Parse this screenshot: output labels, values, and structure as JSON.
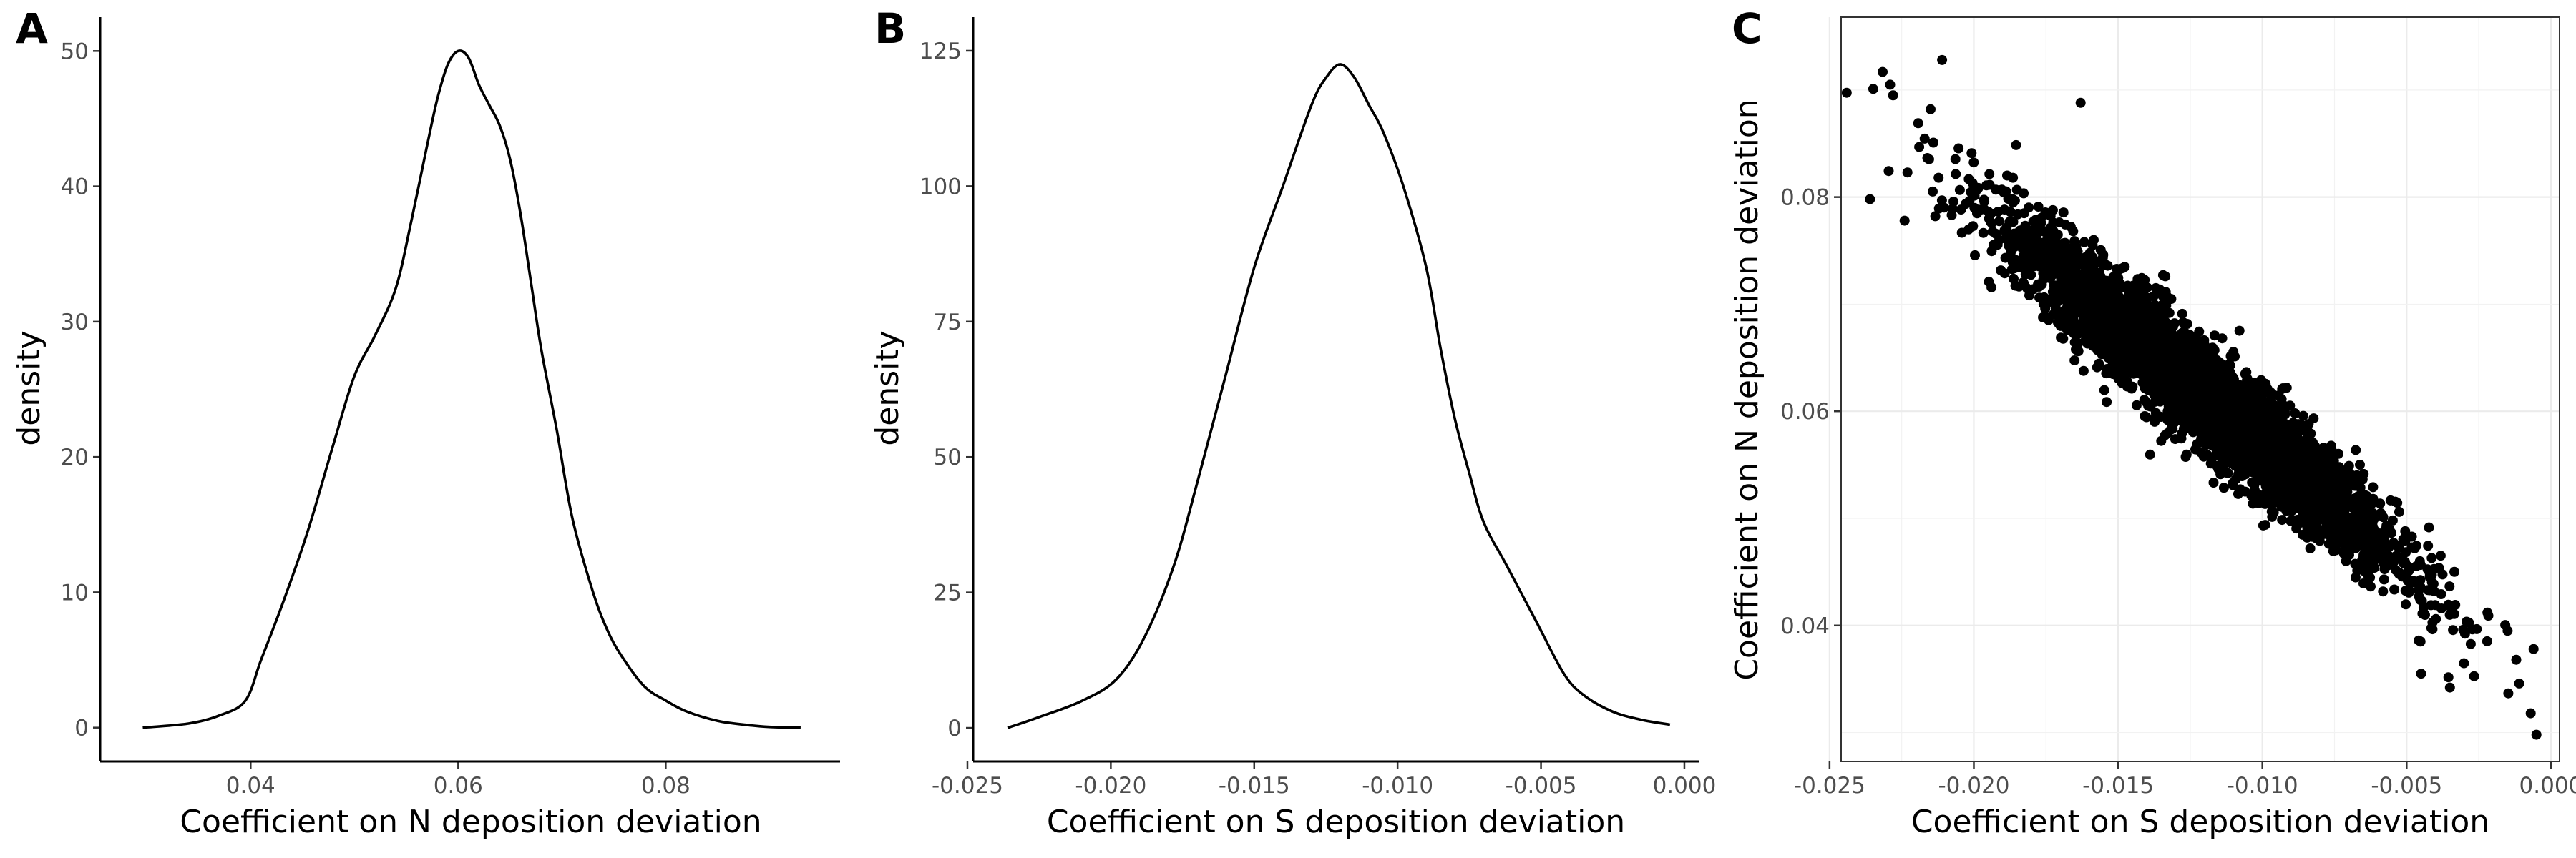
{
  "chart_data": [
    {
      "type": "line",
      "panel": "A",
      "xlabel": "Coefficient on N deposition deviation",
      "ylabel": "density",
      "xlim": [
        0.0255,
        0.0968
      ],
      "ylim": [
        -2.5,
        52.5
      ],
      "xticks": [
        0.04,
        0.06,
        0.08
      ],
      "xtick_labels": [
        "0.04",
        "0.06",
        "0.08"
      ],
      "yticks": [
        0,
        10,
        20,
        30,
        40,
        50
      ],
      "ytick_labels": [
        "0",
        "10",
        "20",
        "30",
        "40",
        "50"
      ],
      "grid": false,
      "x": [
        0.0296,
        0.034,
        0.037,
        0.0395,
        0.041,
        0.043,
        0.0455,
        0.048,
        0.05,
        0.052,
        0.054,
        0.0555,
        0.057,
        0.058,
        0.059,
        0.06,
        0.061,
        0.062,
        0.063,
        0.064,
        0.065,
        0.066,
        0.067,
        0.068,
        0.0695,
        0.071,
        0.073,
        0.0745,
        0.076,
        0.078,
        0.08,
        0.082,
        0.085,
        0.0878,
        0.09,
        0.093
      ],
      "y": [
        0,
        0.3,
        0.9,
        2.0,
        5.0,
        9.0,
        14.5,
        21.0,
        26.0,
        29.0,
        32.5,
        37.5,
        43.0,
        46.5,
        49.0,
        50.0,
        49.5,
        47.5,
        46.0,
        44.5,
        42.0,
        38.0,
        33.0,
        28.0,
        22.0,
        15.5,
        10.0,
        7.0,
        5.0,
        3.0,
        2.0,
        1.2,
        0.5,
        0.2,
        0.05,
        0
      ]
    },
    {
      "type": "line",
      "panel": "B",
      "xlabel": "Coefficient on S deposition deviation",
      "ylabel": "density",
      "xlim": [
        -0.0248,
        0.0005
      ],
      "ylim": [
        -6.2,
        131.2
      ],
      "xticks": [
        -0.025,
        -0.02,
        -0.015,
        -0.01,
        -0.005,
        0.0
      ],
      "xtick_labels": [
        "-0.025",
        "-0.020",
        "-0.015",
        "-0.010",
        "-0.005",
        "0.000"
      ],
      "yticks": [
        0,
        25,
        50,
        75,
        100,
        125
      ],
      "ytick_labels": [
        "0",
        "25",
        "50",
        "75",
        "100",
        "125"
      ],
      "grid": false,
      "x": [
        -0.0236,
        -0.0225,
        -0.021,
        -0.0198,
        -0.0188,
        -0.0178,
        -0.017,
        -0.016,
        -0.015,
        -0.014,
        -0.013,
        -0.0125,
        -0.012,
        -0.0115,
        -0.011,
        -0.0105,
        -0.0098,
        -0.009,
        -0.0085,
        -0.008,
        -0.0075,
        -0.007,
        -0.0062,
        -0.0052,
        -0.0042,
        -0.0035,
        -0.0025,
        -0.0015,
        -0.0005
      ],
      "y": [
        0,
        2.0,
        5.0,
        9.0,
        17.0,
        30.0,
        45.0,
        65.0,
        85.0,
        100.0,
        115.0,
        120.0,
        122.5,
        120.0,
        115.0,
        110.0,
        100.0,
        85.0,
        70.0,
        57.0,
        47.0,
        38.0,
        30.0,
        20.0,
        10.0,
        6.0,
        3.0,
        1.5,
        0.6
      ]
    },
    {
      "type": "scatter",
      "panel": "C",
      "xlabel": "Coefficient on S deposition deviation",
      "ylabel": "Coefficient on N deposition deviation",
      "xlim": [
        -0.0246,
        0.0003
      ],
      "ylim": [
        0.0273,
        0.0968
      ],
      "xticks": [
        -0.025,
        -0.02,
        -0.015,
        -0.01,
        -0.005,
        0.0
      ],
      "xtick_labels": [
        "-0.025",
        "-0.020",
        "-0.015",
        "-0.010",
        "-0.005",
        "0.000"
      ],
      "yticks": [
        0.04,
        0.06,
        0.08
      ],
      "ytick_labels": [
        "0.04",
        "0.06",
        "0.08"
      ],
      "grid": true,
      "n_points_approx": 4000,
      "center": {
        "x": -0.012,
        "y": 0.0615
      },
      "std": {
        "x": 0.0033,
        "y": 0.0078
      },
      "correlation": -0.95,
      "points": [
        {
          "x": -0.0236,
          "y": 0.0798
        },
        {
          "x": -0.0229,
          "y": 0.0905
        },
        {
          "x": -0.0228,
          "y": 0.0895
        },
        {
          "x": -0.0215,
          "y": 0.0882
        },
        {
          "x": -0.0211,
          "y": 0.0928
        },
        {
          "x": -0.0223,
          "y": 0.0823
        },
        {
          "x": -0.0224,
          "y": 0.0778
        },
        {
          "x": -0.0163,
          "y": 0.0888
        },
        {
          "x": -0.0045,
          "y": 0.0355
        },
        {
          "x": -0.0035,
          "y": 0.0342
        },
        {
          "x": -0.0007,
          "y": 0.0318
        },
        {
          "x": -0.0005,
          "y": 0.0298
        },
        {
          "x": -0.0015,
          "y": 0.0395
        },
        {
          "x": -0.0022,
          "y": 0.0412
        },
        {
          "x": -0.0012,
          "y": 0.0368
        },
        {
          "x": -0.0006,
          "y": 0.0378
        }
      ]
    }
  ],
  "panels": [
    {
      "tag": "A"
    },
    {
      "tag": "B"
    },
    {
      "tag": "C"
    }
  ]
}
